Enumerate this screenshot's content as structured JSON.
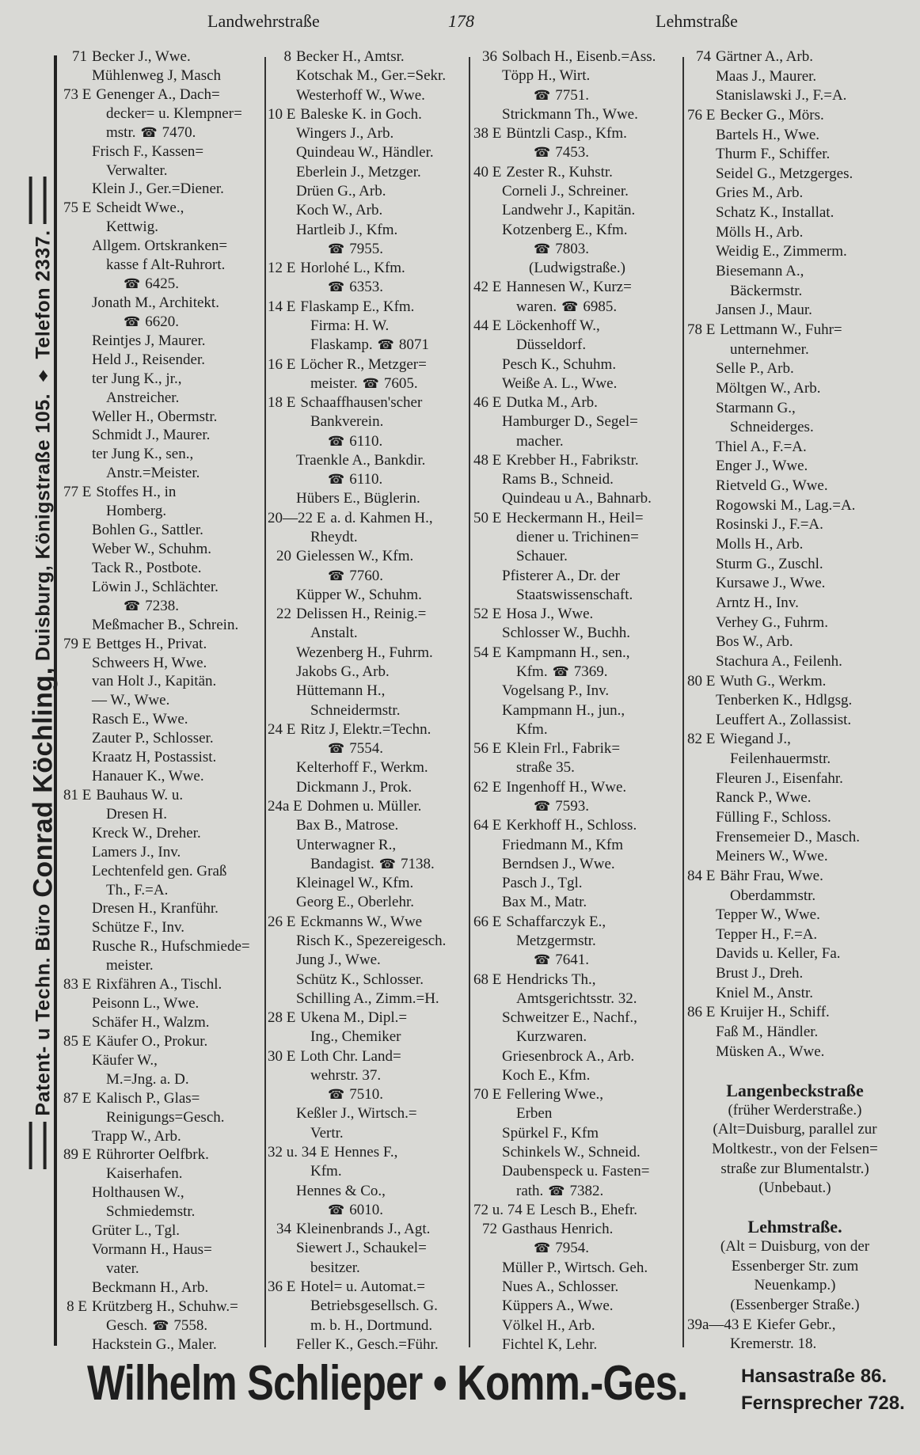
{
  "header": {
    "left": "Landwehrstraße",
    "page": "178",
    "right": "Lehmstraße"
  },
  "side_ad": {
    "pre": "Patent- u Techn. Büro",
    "name": "Conrad Köchling,",
    "post": "Duisburg, Königstraße 105. ♦ Telefon 2337."
  },
  "footer": {
    "name": "Wilhelm Schlieper • Komm.-Ges.",
    "addr": "Hansastraße 86.",
    "phone": "Fernsprecher 728."
  },
  "icons": {
    "phone": "telephone-icon"
  },
  "columns": [
    {
      "lines": [
        {
          "n": "71",
          "t": "Becker J., Wwe."
        },
        {
          "t": "Mühlenweg J, Masch"
        },
        {
          "n": "73 E",
          "t": "Genenger A., Dach="
        },
        {
          "w": 1,
          "t": "decker= u. Klempner="
        },
        {
          "w": 1,
          "t": "mstr.",
          "p": "7470."
        },
        {
          "t": "Frisch F., Kassen="
        },
        {
          "w": 1,
          "t": "Verwalter."
        },
        {
          "t": "Klein J., Ger.=Diener."
        },
        {
          "n": "75 E",
          "t": "Scheidt Wwe.,"
        },
        {
          "w": 1,
          "t": "Kettwig."
        },
        {
          "t": "Allgem. Ortskranken="
        },
        {
          "w": 1,
          "t": "kasse f Alt-Ruhrort."
        },
        {
          "p": "6425."
        },
        {
          "t": "Jonath M., Architekt."
        },
        {
          "p": "6620."
        },
        {
          "t": "Reintjes J, Maurer."
        },
        {
          "t": "Held J., Reisender."
        },
        {
          "t": "ter Jung K., jr.,"
        },
        {
          "w": 1,
          "t": "Anstreicher."
        },
        {
          "t": "Weller H., Obermstr."
        },
        {
          "t": "Schmidt J., Maurer."
        },
        {
          "t": "ter Jung K., sen.,"
        },
        {
          "w": 1,
          "t": "Anstr.=Meister."
        },
        {
          "n": "77 E",
          "t": "Stoffes H., in"
        },
        {
          "w": 1,
          "t": "Homberg."
        },
        {
          "t": "Bohlen G., Sattler."
        },
        {
          "t": "Weber W., Schuhm."
        },
        {
          "t": "Tack R., Postbote."
        },
        {
          "t": "Löwin J., Schlächter."
        },
        {
          "p": "7238."
        },
        {
          "t": "Meßmacher B., Schrein."
        },
        {
          "n": "79 E",
          "t": "Bettges H., Privat."
        },
        {
          "t": "Schweers H, Wwe."
        },
        {
          "t": "van Holt J., Kapitän."
        },
        {
          "t": "— W., Wwe."
        },
        {
          "t": "Rasch E., Wwe."
        },
        {
          "t": "Zauter P., Schlosser."
        },
        {
          "t": "Kraatz H, Postassist."
        },
        {
          "t": "Hanauer K., Wwe."
        },
        {
          "n": "81 E",
          "t": "Bauhaus W. u."
        },
        {
          "w": 1,
          "t": "Dresen H."
        },
        {
          "t": "Kreck W., Dreher."
        },
        {
          "t": "Lamers J., Inv."
        },
        {
          "t": "Lechtenfeld gen. Graß"
        },
        {
          "w": 1,
          "t": "Th., F.=A."
        },
        {
          "t": "Dresen H., Kranführ."
        },
        {
          "t": "Schütze F., Inv."
        },
        {
          "t": "Rusche R., Hufschmiede="
        },
        {
          "w": 1,
          "t": "meister."
        },
        {
          "n": "83 E",
          "t": "Rixfähren A., Tischl."
        },
        {
          "t": "Peisonn L., Wwe."
        },
        {
          "t": "Schäfer H., Walzm."
        },
        {
          "n": "85 E",
          "t": "Käufer O., Prokur."
        },
        {
          "t": "Käufer W.,"
        },
        {
          "w": 1,
          "t": "M.=Jng. a. D."
        },
        {
          "n": "87 E",
          "t": "Kalisch P., Glas="
        },
        {
          "w": 1,
          "t": "Reinigungs=Gesch."
        },
        {
          "t": "Trapp W., Arb."
        },
        {
          "n": "89 E",
          "t": "Rührorter Oelfbrk."
        },
        {
          "w": 1,
          "t": "Kaiserhafen."
        },
        {
          "t": "Holthausen W.,"
        },
        {
          "w": 1,
          "t": "Schmiedemstr."
        },
        {
          "t": "Grüter L., Tgl."
        },
        {
          "t": "Vormann H., Haus="
        },
        {
          "w": 1,
          "t": "vater."
        },
        {
          "t": "Beckmann H., Arb."
        },
        {
          "n": "8 E",
          "t": "Krützberg H., Schuhw.="
        },
        {
          "w": 1,
          "t": "Gesch.",
          "p": "7558."
        },
        {
          "t": "Hackstein G., Maler."
        }
      ]
    },
    {
      "lines": [
        {
          "n": "8",
          "t": "Becker H., Amtsr."
        },
        {
          "t": "Kotschak M., Ger.=Sekr."
        },
        {
          "t": "Westerhoff W., Wwe."
        },
        {
          "n": "10 E",
          "t": "Baleske K. in Goch."
        },
        {
          "t": "Wingers J., Arb."
        },
        {
          "t": "Quindeau W., Händler."
        },
        {
          "t": "Eberlein J., Metzger."
        },
        {
          "t": "Drüen G., Arb."
        },
        {
          "t": "Koch W., Arb."
        },
        {
          "t": "Hartleib J., Kfm."
        },
        {
          "p": "7955."
        },
        {
          "n": "12 E",
          "t": "Horlohé L., Kfm."
        },
        {
          "p": "6353."
        },
        {
          "n": "14 E",
          "t": "Flaskamp E., Kfm."
        },
        {
          "w": 1,
          "t": "Firma: H. W."
        },
        {
          "w": 1,
          "t": "Flaskamp.",
          "p": "8071"
        },
        {
          "n": "16 E",
          "t": "Löcher R., Metzger="
        },
        {
          "w": 1,
          "t": "meister.",
          "p": "7605."
        },
        {
          "n": "18 E",
          "t": "Schaaffhausen'scher"
        },
        {
          "w": 1,
          "t": "Bankverein."
        },
        {
          "p": "6110."
        },
        {
          "t": "Traenkle A., Bankdir."
        },
        {
          "p": "6110."
        },
        {
          "t": "Hübers E., Büglerin."
        },
        {
          "n": "20—22 E",
          "t": "a. d. Kahmen H.,"
        },
        {
          "w": 1,
          "t": "Rheydt."
        },
        {
          "n": "20",
          "t": "Gielessen W., Kfm."
        },
        {
          "p": "7760."
        },
        {
          "t": "Küpper W., Schuhm."
        },
        {
          "n": "22",
          "t": "Delissen H., Reinig.="
        },
        {
          "w": 1,
          "t": "Anstalt."
        },
        {
          "t": "Wezenberg H., Fuhrm."
        },
        {
          "t": "Jakobs G., Arb."
        },
        {
          "t": "Hüttemann H.,"
        },
        {
          "w": 1,
          "t": "Schneidermstr."
        },
        {
          "n": "24 E",
          "t": "Ritz J, Elektr.=Techn."
        },
        {
          "p": "7554."
        },
        {
          "t": "Kelterhoff F., Werkm."
        },
        {
          "t": "Dickmann J., Prok."
        },
        {
          "n": "24a E",
          "t": "Dohmen u. Müller."
        },
        {
          "t": "Bax B., Matrose."
        },
        {
          "t": "Unterwagner R.,"
        },
        {
          "w": 1,
          "t": "Bandagist.",
          "p": "7138."
        },
        {
          "t": "Kleinagel W., Kfm."
        },
        {
          "t": "Georg E., Oberlehr."
        },
        {
          "n": "26 E",
          "t": "Eckmanns W., Wwe"
        },
        {
          "t": "Risch K., Spezereigesch."
        },
        {
          "t": "Jung J., Wwe."
        },
        {
          "t": "Schütz K., Schlosser."
        },
        {
          "t": "Schilling A., Zimm.=H."
        },
        {
          "n": "28 E",
          "t": "Ukena M., Dipl.="
        },
        {
          "w": 1,
          "t": "Ing., Chemiker"
        },
        {
          "n": "30 E",
          "t": "Loth Chr. Land="
        },
        {
          "w": 1,
          "t": "wehrstr. 37."
        },
        {
          "p": "7510."
        },
        {
          "t": "Keßler J., Wirtsch.="
        },
        {
          "w": 1,
          "t": "Vertr."
        },
        {
          "n": "32 u. 34 E",
          "t": "Hennes F.,"
        },
        {
          "w": 1,
          "t": "Kfm."
        },
        {
          "t": "Hennes & Co.,"
        },
        {
          "p": "6010."
        },
        {
          "n": "34",
          "t": "Kleinenbrands J., Agt."
        },
        {
          "t": "Siewert J., Schaukel="
        },
        {
          "w": 1,
          "t": "besitzer."
        },
        {
          "n": "36 E",
          "t": "Hotel= u. Automat.="
        },
        {
          "w": 1,
          "t": "Betriebsgesellsch. G."
        },
        {
          "w": 1,
          "t": "m. b. H., Dortmund."
        },
        {
          "t": "Feller K., Gesch.=Führ."
        }
      ]
    },
    {
      "lines": [
        {
          "n": "36",
          "t": "Solbach H., Eisenb.=Ass."
        },
        {
          "t": "Töpp H., Wirt."
        },
        {
          "p": "7751."
        },
        {
          "t": "Strickmann Th., Wwe."
        },
        {
          "n": "38 E",
          "t": "Büntzli Casp., Kfm."
        },
        {
          "p": "7453."
        },
        {
          "n": "40 E",
          "t": "Zester R., Kuhstr."
        },
        {
          "t": "Corneli J., Schreiner."
        },
        {
          "t": "Landwehr J., Kapitän."
        },
        {
          "t": "Kotzenberg E., Kfm."
        },
        {
          "p": "7803."
        },
        {
          "c": "(Ludwigstraße.)"
        },
        {
          "n": "42 E",
          "t": "Hannesen W., Kurz="
        },
        {
          "w": 1,
          "t": "waren.",
          "p": "6985."
        },
        {
          "n": "44 E",
          "t": "Löckenhoff W.,"
        },
        {
          "w": 1,
          "t": "Düsseldorf."
        },
        {
          "t": "Pesch K., Schuhm."
        },
        {
          "t": "Weiße A. L., Wwe."
        },
        {
          "n": "46 E",
          "t": "Dutka M., Arb."
        },
        {
          "t": "Hamburger D., Segel="
        },
        {
          "w": 1,
          "t": "macher."
        },
        {
          "n": "48 E",
          "t": "Krebber H., Fabrikstr."
        },
        {
          "t": "Rams B., Schneid."
        },
        {
          "t": "Quindeau u A., Bahnarb."
        },
        {
          "n": "50 E",
          "t": "Heckermann H., Heil="
        },
        {
          "w": 1,
          "t": "diener u. Trichinen="
        },
        {
          "w": 1,
          "t": "Schauer."
        },
        {
          "t": "Pfisterer A., Dr. der"
        },
        {
          "w": 1,
          "t": "Staatswissenschaft."
        },
        {
          "n": "52 E",
          "t": "Hosa J., Wwe."
        },
        {
          "t": "Schlosser W., Buchh."
        },
        {
          "n": "54 E",
          "t": "Kampmann H., sen.,"
        },
        {
          "w": 1,
          "t": "Kfm.",
          "p": "7369."
        },
        {
          "t": "Vogelsang P., Inv."
        },
        {
          "t": "Kampmann H., jun.,"
        },
        {
          "w": 1,
          "t": "Kfm."
        },
        {
          "n": "56 E",
          "t": "Klein Frl., Fabrik="
        },
        {
          "w": 1,
          "t": "straße 35."
        },
        {
          "n": "62 E",
          "t": "Ingenhoff H., Wwe."
        },
        {
          "p": "7593."
        },
        {
          "n": "64 E",
          "t": "Kerkhoff H., Schloss."
        },
        {
          "t": "Friedmann M., Kfm"
        },
        {
          "t": "Berndsen J., Wwe."
        },
        {
          "t": "Pasch J., Tgl."
        },
        {
          "t": "Bax M., Matr."
        },
        {
          "n": "66 E",
          "t": "Schaffarczyk E.,"
        },
        {
          "w": 1,
          "t": "Metzgermstr."
        },
        {
          "p": "7641."
        },
        {
          "n": "68 E",
          "t": "Hendricks Th.,"
        },
        {
          "w": 1,
          "t": "Amtsgerichtsstr. 32."
        },
        {
          "t": "Schweitzer E., Nachf.,"
        },
        {
          "w": 1,
          "t": "Kurzwaren."
        },
        {
          "t": "Griesenbrock A., Arb."
        },
        {
          "t": "Koch E., Kfm."
        },
        {
          "n": "70 E",
          "t": "Fellering Wwe.,"
        },
        {
          "w": 1,
          "t": "Erben"
        },
        {
          "t": "Spürkel F., Kfm"
        },
        {
          "t": "Schinkels W., Schneid."
        },
        {
          "t": "Daubenspeck u. Fasten="
        },
        {
          "w": 1,
          "t": "rath.",
          "p": "7382."
        },
        {
          "n": "72 u. 74 E",
          "t": "Lesch B., Ehefr."
        },
        {
          "n": "72",
          "t": "Gasthaus Henrich."
        },
        {
          "p": "7954."
        },
        {
          "t": "Müller P., Wirtsch. Geh."
        },
        {
          "t": "Nues A., Schlosser."
        },
        {
          "t": "Küppers A., Wwe."
        },
        {
          "t": "Völkel H., Arb."
        },
        {
          "t": "Fichtel K, Lehr."
        }
      ]
    },
    {
      "lines": [
        {
          "n": "74",
          "t": "Gärtner A., Arb."
        },
        {
          "t": "Maas J., Maurer."
        },
        {
          "t": "Stanislawski J., F.=A."
        },
        {
          "n": "76 E",
          "t": "Becker G., Mörs."
        },
        {
          "t": "Bartels H., Wwe."
        },
        {
          "t": "Thurm F., Schiffer."
        },
        {
          "t": "Seidel G., Metzgerges."
        },
        {
          "t": "Gries M., Arb."
        },
        {
          "t": "Schatz K., Installat."
        },
        {
          "t": "Mölls H., Arb."
        },
        {
          "t": "Weidig E., Zimmerm."
        },
        {
          "t": "Biesemann A.,"
        },
        {
          "w": 1,
          "t": "Bäckermstr."
        },
        {
          "t": "Jansen J., Maur."
        },
        {
          "n": "78 E",
          "t": "Lettmann W., Fuhr="
        },
        {
          "w": 1,
          "t": "unternehmer."
        },
        {
          "t": "Selle P., Arb."
        },
        {
          "t": "Möltgen W., Arb."
        },
        {
          "t": "Starmann G.,"
        },
        {
          "w": 1,
          "t": "Schneiderges."
        },
        {
          "t": "Thiel A., F.=A."
        },
        {
          "t": "Enger J., Wwe."
        },
        {
          "t": "Rietveld G., Wwe."
        },
        {
          "t": "Rogowski M., Lag.=A."
        },
        {
          "t": "Rosinski J., F.=A."
        },
        {
          "t": "Molls H., Arb."
        },
        {
          "t": "Sturm G., Zuschl."
        },
        {
          "t": "Kursawe J., Wwe."
        },
        {
          "t": "Arntz H., Inv."
        },
        {
          "t": "Verhey G., Fuhrm."
        },
        {
          "t": "Bos W., Arb."
        },
        {
          "t": "Stachura A., Feilenh."
        },
        {
          "n": "80 E",
          "t": "Wuth G., Werkm."
        },
        {
          "t": "Tenberken K., Hdlgsg."
        },
        {
          "t": "Leuffert A., Zollassist."
        },
        {
          "n": "82 E",
          "t": "Wiegand J.,"
        },
        {
          "w": 1,
          "t": "Feilenhauermstr."
        },
        {
          "t": "Fleuren J., Eisenfahr."
        },
        {
          "t": "Ranck P., Wwe."
        },
        {
          "t": "Fülling F., Schloss."
        },
        {
          "t": "Frensemeier D., Masch."
        },
        {
          "t": "Meiners W., Wwe."
        },
        {
          "n": "84 E",
          "t": "Bähr Frau, Wwe."
        },
        {
          "w": 1,
          "t": "Oberdammstr."
        },
        {
          "t": "Tepper W., Wwe."
        },
        {
          "t": "Tepper H., F.=A."
        },
        {
          "t": "Davids u. Keller, Fa."
        },
        {
          "t": "Brust J., Dreh."
        },
        {
          "t": "Kniel M., Anstr."
        },
        {
          "n": "86 E",
          "t": "Kruijer H., Schiff."
        },
        {
          "t": "Faß M., Händler."
        },
        {
          "t": "Müsken A., Wwe."
        },
        {
          "c": ""
        },
        {
          "h": "Langenbeckstraße"
        },
        {
          "c": "(früher Werderstraße.)"
        },
        {
          "c": "(Alt=Duisburg, parallel zur"
        },
        {
          "c": "Moltkestr., von der Felsen="
        },
        {
          "c": "straße zur Blumentalstr.)"
        },
        {
          "c": "(Unbebaut.)"
        },
        {
          "c": ""
        },
        {
          "h": "Lehmstraße."
        },
        {
          "c": "(Alt = Duisburg, von der"
        },
        {
          "c": "Essenberger Str. zum"
        },
        {
          "c": "Neuenkamp.)"
        },
        {
          "c": "(Essenberger Straße.)"
        },
        {
          "n": "39a—43 E",
          "t": "Kiefer Gebr.,"
        },
        {
          "w": 1,
          "t": "Kremerstr. 18."
        }
      ]
    }
  ]
}
